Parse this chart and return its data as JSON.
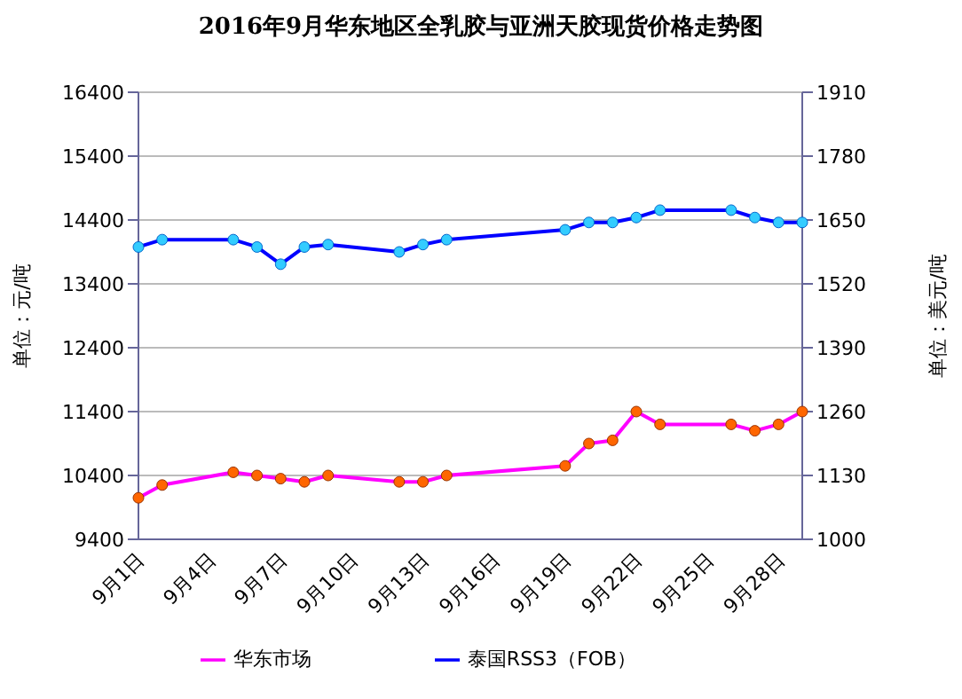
{
  "chart_data": {
    "type": "line",
    "title": "2016年9月华东地区全乳胶与亚洲天胶现货价格走势图",
    "ylabel": "单位：元/吨",
    "y2label": "单位：美元/吨",
    "categories": [
      "9月1日",
      null,
      null,
      "9月4日",
      null,
      null,
      "9月7日",
      null,
      null,
      "9月10日",
      null,
      null,
      "9月13日",
      null,
      null,
      "9月16日",
      null,
      null,
      "9月19日",
      null,
      null,
      "9月22日",
      null,
      null,
      "9月25日",
      null,
      null,
      "9月28日",
      null
    ],
    "series": [
      {
        "name": "华东市场",
        "color": "#ff00ff",
        "values": [
          10050,
          10250,
          null,
          null,
          10450,
          10400,
          10350,
          10300,
          10400,
          null,
          null,
          10300,
          10300,
          10400,
          null,
          null,
          null,
          null,
          10550,
          10900,
          10950,
          11400,
          11200,
          null,
          null,
          11200,
          11100,
          11200,
          11400
        ]
      },
      {
        "name": "泰国RSS3（FOB）",
        "color": "#0000ff",
        "axis": "y2",
        "values": [
          1595,
          1610,
          null,
          null,
          1610,
          1595,
          1560,
          1595,
          1600,
          null,
          null,
          1585,
          1600,
          1610,
          null,
          null,
          null,
          null,
          1630,
          1645,
          1645,
          1655,
          1670,
          null,
          null,
          1670,
          1655,
          1645,
          1645
        ]
      }
    ],
    "ylim": [
      9400,
      16400
    ],
    "yticks": [
      9400,
      10400,
      11400,
      12400,
      13400,
      14400,
      15400,
      16400
    ],
    "y2lim": [
      1000,
      1910
    ],
    "y2ticks": [
      1000,
      1130,
      1260,
      1390,
      1520,
      1650,
      1780,
      1910
    ],
    "grid": "y",
    "legend": "bottom",
    "marker": "circle",
    "line_style": "solid"
  }
}
